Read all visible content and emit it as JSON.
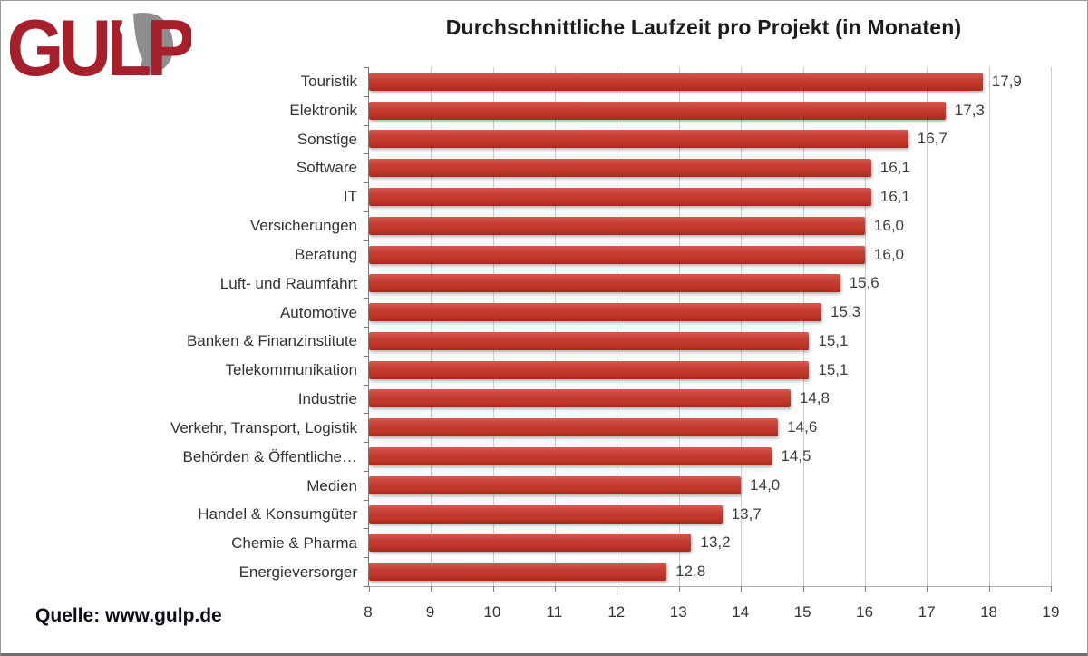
{
  "logo": {
    "text": "GULP"
  },
  "title": "Durchschnittliche Laufzeit pro Projekt (in Monaten)",
  "source": "Quelle: www.gulp.de",
  "colors": {
    "bar": "#c23b31",
    "logo_red": "#a6202c",
    "logo_gray": "#8e8e8e",
    "gridline": "#cccccc",
    "axis": "#7a7a7a"
  },
  "chart_data": {
    "type": "bar",
    "orientation": "horizontal",
    "title": "Durchschnittliche Laufzeit pro Projekt (in Monaten)",
    "xlabel": "",
    "ylabel": "",
    "xlim": [
      8,
      19
    ],
    "x_ticks": [
      8,
      9,
      10,
      11,
      12,
      13,
      14,
      15,
      16,
      17,
      18,
      19
    ],
    "grid": true,
    "legend": false,
    "categories": [
      "Touristik",
      "Elektronik",
      "Sonstige",
      "Software",
      "IT",
      "Versicherungen",
      "Beratung",
      "Luft- und Raumfahrt",
      "Automotive",
      "Banken & Finanzinstitute",
      "Telekommunikation",
      "Industrie",
      "Verkehr, Transport, Logistik",
      "Behörden & Öffentliche…",
      "Medien",
      "Handel & Konsumgüter",
      "Chemie & Pharma",
      "Energieversorger"
    ],
    "values": [
      17.9,
      17.3,
      16.7,
      16.1,
      16.1,
      16.0,
      16.0,
      15.6,
      15.3,
      15.1,
      15.1,
      14.8,
      14.6,
      14.5,
      14.0,
      13.7,
      13.2,
      12.8
    ],
    "value_labels": [
      "17,9",
      "17,3",
      "16,7",
      "16,1",
      "16,1",
      "16,0",
      "16,0",
      "15,6",
      "15,3",
      "15,1",
      "15,1",
      "14,8",
      "14,6",
      "14,5",
      "14,0",
      "13,7",
      "13,2",
      "12,8"
    ]
  }
}
